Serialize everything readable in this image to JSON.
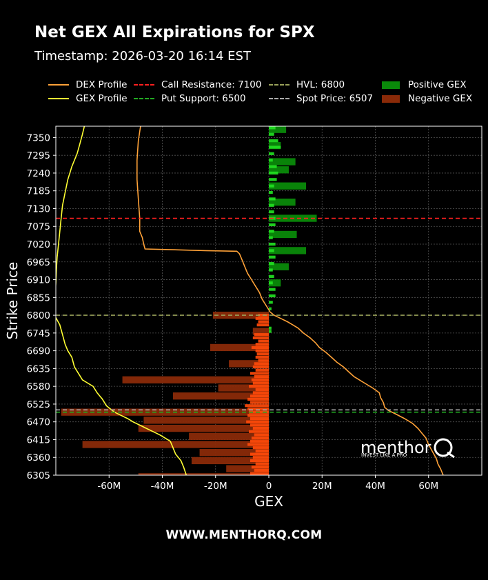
{
  "header": {
    "title": "Net GEX All Expirations for SPX",
    "subtitle": "Timestamp: 2026-03-20 16:14 EST"
  },
  "legend": [
    {
      "label": "DEX Profile",
      "kind": "line",
      "color": "#ffa238",
      "dash": "solid"
    },
    {
      "label": "GEX Profile",
      "kind": "line",
      "color": "#ffff33",
      "dash": "solid"
    },
    {
      "label": "Call Resistance: 7100",
      "kind": "line",
      "color": "#ff2020",
      "dash": "dashed"
    },
    {
      "label": "Put Support: 6500",
      "kind": "line",
      "color": "#22aa22",
      "dash": "dashed"
    },
    {
      "label": "HVL: 6800",
      "kind": "line",
      "color": "#9aa25a",
      "dash": "dashed"
    },
    {
      "label": "Spot Price: 6507",
      "kind": "line",
      "color": "#aaaaaa",
      "dash": "dashed"
    },
    {
      "label": "Positive GEX",
      "kind": "box",
      "color": "#0a8a0a"
    },
    {
      "label": "Negative GEX",
      "kind": "box",
      "color": "#8a2a08"
    }
  ],
  "footer": "WWW.MENTHORQ.COM",
  "watermark": {
    "brand": "menthor",
    "letter": "Q",
    "tagline": "INVEST LIKE A PRO"
  },
  "chart_data": {
    "type": "bar",
    "orientation": "horizontal",
    "xlabel": "GEX",
    "ylabel": "Strike Price",
    "xlim": [
      -80000000,
      80000000
    ],
    "ylim": [
      6305,
      7385
    ],
    "xticks": [
      -60000000,
      -40000000,
      -20000000,
      0,
      20000000,
      40000000,
      60000000
    ],
    "xtick_labels": [
      "-60M",
      "-40M",
      "-20M",
      "0",
      "20M",
      "40M",
      "60M"
    ],
    "yticks": [
      6305,
      6360,
      6415,
      6470,
      6525,
      6580,
      6635,
      6690,
      6745,
      6800,
      6855,
      6910,
      6965,
      7020,
      7075,
      7130,
      7185,
      7240,
      7295,
      7350
    ],
    "grid": true,
    "levels": [
      {
        "name": "Call Resistance",
        "value": 7100,
        "color": "#ff2020"
      },
      {
        "name": "HVL",
        "value": 6800,
        "color": "#9aa25a"
      },
      {
        "name": "Spot Price",
        "value": 6507,
        "color": "#aaaaaa"
      },
      {
        "name": "Put Support",
        "value": 6500,
        "color": "#22aa22"
      }
    ],
    "gex_bars_wide": [
      {
        "strike": 7375,
        "value": 6500000
      },
      {
        "strike": 7325,
        "value": 4500000
      },
      {
        "strike": 7275,
        "value": 10000000
      },
      {
        "strike": 7250,
        "value": 7500000
      },
      {
        "strike": 7200,
        "value": 14000000
      },
      {
        "strike": 7150,
        "value": 10000000
      },
      {
        "strike": 7100,
        "value": 18000000
      },
      {
        "strike": 7050,
        "value": 10500000
      },
      {
        "strike": 7000,
        "value": 14000000
      },
      {
        "strike": 6950,
        "value": 7500000
      },
      {
        "strike": 6900,
        "value": 4500000
      },
      {
        "strike": 6800,
        "value": -21000000
      },
      {
        "strike": 6750,
        "value": -6000000
      },
      {
        "strike": 6700,
        "value": -22000000
      },
      {
        "strike": 6650,
        "value": -15000000
      },
      {
        "strike": 6600,
        "value": -55000000
      },
      {
        "strike": 6575,
        "value": -19000000
      },
      {
        "strike": 6550,
        "value": -36000000
      },
      {
        "strike": 6500,
        "value": -78000000
      },
      {
        "strike": 6475,
        "value": -47000000
      },
      {
        "strike": 6450,
        "value": -49000000
      },
      {
        "strike": 6425,
        "value": -30000000
      },
      {
        "strike": 6400,
        "value": -70000000
      },
      {
        "strike": 6375,
        "value": -26000000
      },
      {
        "strike": 6350,
        "value": -29000000
      },
      {
        "strike": 6325,
        "value": -16000000
      },
      {
        "strike": 6300,
        "value": -49000000
      }
    ],
    "gex_bars_narrow": [
      {
        "strike": 7380,
        "value": 2500000
      },
      {
        "strike": 7360,
        "value": 2000000
      },
      {
        "strike": 7340,
        "value": 3500000
      },
      {
        "strike": 7320,
        "value": 4500000
      },
      {
        "strike": 7300,
        "value": 2000000
      },
      {
        "strike": 7280,
        "value": 1500000
      },
      {
        "strike": 7260,
        "value": 3000000
      },
      {
        "strike": 7240,
        "value": 3500000
      },
      {
        "strike": 7220,
        "value": 3000000
      },
      {
        "strike": 7200,
        "value": 2000000
      },
      {
        "strike": 7180,
        "value": 1500000
      },
      {
        "strike": 7160,
        "value": 2500000
      },
      {
        "strike": 7140,
        "value": 2000000
      },
      {
        "strike": 7120,
        "value": 2000000
      },
      {
        "strike": 7100,
        "value": 2500000
      },
      {
        "strike": 7080,
        "value": 2500000
      },
      {
        "strike": 7060,
        "value": 2000000
      },
      {
        "strike": 7040,
        "value": 1500000
      },
      {
        "strike": 7020,
        "value": 2500000
      },
      {
        "strike": 7000,
        "value": 2000000
      },
      {
        "strike": 6980,
        "value": 2500000
      },
      {
        "strike": 6960,
        "value": 2000000
      },
      {
        "strike": 6940,
        "value": 1500000
      },
      {
        "strike": 6920,
        "value": 2000000
      },
      {
        "strike": 6900,
        "value": 1500000
      },
      {
        "strike": 6880,
        "value": 2500000
      },
      {
        "strike": 6860,
        "value": 2500000
      },
      {
        "strike": 6840,
        "value": 1500000
      },
      {
        "strike": 6820,
        "value": 1000000
      },
      {
        "strike": 6800,
        "value": -4000000
      },
      {
        "strike": 6790,
        "value": -5000000
      },
      {
        "strike": 6780,
        "value": -4000000
      },
      {
        "strike": 6770,
        "value": -4500000
      },
      {
        "strike": 6760,
        "value": 1000000
      },
      {
        "strike": 6750,
        "value": 1000000
      },
      {
        "strike": 6740,
        "value": -5500000
      },
      {
        "strike": 6730,
        "value": -6000000
      },
      {
        "strike": 6720,
        "value": -4000000
      },
      {
        "strike": 6710,
        "value": -5000000
      },
      {
        "strike": 6700,
        "value": -6500000
      },
      {
        "strike": 6690,
        "value": -5000000
      },
      {
        "strike": 6680,
        "value": -4500000
      },
      {
        "strike": 6670,
        "value": -5000000
      },
      {
        "strike": 6660,
        "value": -4000000
      },
      {
        "strike": 6650,
        "value": -5500000
      },
      {
        "strike": 6640,
        "value": -6000000
      },
      {
        "strike": 6630,
        "value": -5000000
      },
      {
        "strike": 6620,
        "value": -7000000
      },
      {
        "strike": 6610,
        "value": -5500000
      },
      {
        "strike": 6600,
        "value": -6500000
      },
      {
        "strike": 6590,
        "value": -6000000
      },
      {
        "strike": 6580,
        "value": -7500000
      },
      {
        "strike": 6570,
        "value": -5000000
      },
      {
        "strike": 6560,
        "value": -6000000
      },
      {
        "strike": 6550,
        "value": -7000000
      },
      {
        "strike": 6540,
        "value": -8000000
      },
      {
        "strike": 6530,
        "value": -7000000
      },
      {
        "strike": 6520,
        "value": -9000000
      },
      {
        "strike": 6510,
        "value": -8000000
      },
      {
        "strike": 6500,
        "value": -7500000
      },
      {
        "strike": 6490,
        "value": -8000000
      },
      {
        "strike": 6480,
        "value": -7000000
      },
      {
        "strike": 6470,
        "value": -8500000
      },
      {
        "strike": 6460,
        "value": -7000000
      },
      {
        "strike": 6450,
        "value": -6000000
      },
      {
        "strike": 6440,
        "value": -7500000
      },
      {
        "strike": 6430,
        "value": -5500000
      },
      {
        "strike": 6420,
        "value": -6500000
      },
      {
        "strike": 6410,
        "value": -7000000
      },
      {
        "strike": 6400,
        "value": -8000000
      },
      {
        "strike": 6390,
        "value": -6000000
      },
      {
        "strike": 6380,
        "value": -5000000
      },
      {
        "strike": 6370,
        "value": -7000000
      },
      {
        "strike": 6360,
        "value": -6000000
      },
      {
        "strike": 6350,
        "value": -7000000
      },
      {
        "strike": 6340,
        "value": -5000000
      },
      {
        "strike": 6330,
        "value": -6500000
      },
      {
        "strike": 6320,
        "value": -5500000
      },
      {
        "strike": 6310,
        "value": -7000000
      }
    ],
    "gex_profile": [
      [
        7395,
        -69000000
      ],
      [
        7360,
        -70000000
      ],
      [
        7330,
        -71000000
      ],
      [
        7300,
        -72000000
      ],
      [
        7260,
        -74000000
      ],
      [
        7220,
        -75500000
      ],
      [
        7180,
        -76500000
      ],
      [
        7140,
        -77500000
      ],
      [
        7100,
        -78000000
      ],
      [
        7060,
        -78500000
      ],
      [
        7020,
        -79000000
      ],
      [
        6980,
        -79500000
      ],
      [
        6940,
        -79800000
      ],
      [
        6900,
        -80000000
      ],
      [
        6860,
        -80300000
      ],
      [
        6830,
        -80500000
      ],
      [
        6800,
        -80500000
      ],
      [
        6770,
        -78500000
      ],
      [
        6740,
        -77500000
      ],
      [
        6710,
        -76500000
      ],
      [
        6690,
        -75500000
      ],
      [
        6670,
        -74000000
      ],
      [
        6640,
        -73000000
      ],
      [
        6620,
        -71500000
      ],
      [
        6600,
        -70000000
      ],
      [
        6590,
        -68000000
      ],
      [
        6580,
        -66000000
      ],
      [
        6560,
        -64500000
      ],
      [
        6540,
        -62500000
      ],
      [
        6520,
        -61000000
      ],
      [
        6510,
        -59500000
      ],
      [
        6500,
        -58000000
      ],
      [
        6490,
        -55500000
      ],
      [
        6480,
        -53000000
      ],
      [
        6470,
        -51000000
      ],
      [
        6460,
        -48500000
      ],
      [
        6450,
        -46000000
      ],
      [
        6440,
        -43500000
      ],
      [
        6430,
        -41000000
      ],
      [
        6420,
        -39000000
      ],
      [
        6410,
        -37000000
      ],
      [
        6390,
        -36000000
      ],
      [
        6370,
        -35000000
      ],
      [
        6350,
        -33000000
      ],
      [
        6330,
        -32000000
      ],
      [
        6305,
        -31000000
      ]
    ],
    "dex_profile": [
      [
        7395,
        -48000000
      ],
      [
        7340,
        -49000000
      ],
      [
        7280,
        -49500000
      ],
      [
        7220,
        -49500000
      ],
      [
        7160,
        -49000000
      ],
      [
        7100,
        -48500000
      ],
      [
        7060,
        -48500000
      ],
      [
        7040,
        -47500000
      ],
      [
        7020,
        -47000000
      ],
      [
        7005,
        -46500000
      ],
      [
        7000,
        -24000000
      ],
      [
        6998,
        -12000000
      ],
      [
        6990,
        -11000000
      ],
      [
        6970,
        -10000000
      ],
      [
        6950,
        -9000000
      ],
      [
        6930,
        -8000000
      ],
      [
        6910,
        -6500000
      ],
      [
        6890,
        -5000000
      ],
      [
        6870,
        -3500000
      ],
      [
        6850,
        -2500000
      ],
      [
        6830,
        -1000000
      ],
      [
        6810,
        500000
      ],
      [
        6800,
        2000000
      ],
      [
        6790,
        4500000
      ],
      [
        6780,
        7000000
      ],
      [
        6770,
        9000000
      ],
      [
        6760,
        11000000
      ],
      [
        6745,
        13000000
      ],
      [
        6730,
        15500000
      ],
      [
        6715,
        17500000
      ],
      [
        6700,
        19000000
      ],
      [
        6685,
        21500000
      ],
      [
        6670,
        23500000
      ],
      [
        6655,
        25500000
      ],
      [
        6640,
        28000000
      ],
      [
        6625,
        30000000
      ],
      [
        6610,
        32000000
      ],
      [
        6600,
        34000000
      ],
      [
        6590,
        36000000
      ],
      [
        6575,
        39000000
      ],
      [
        6560,
        41500000
      ],
      [
        6545,
        42000000
      ],
      [
        6530,
        43000000
      ],
      [
        6515,
        43500000
      ],
      [
        6505,
        45000000
      ],
      [
        6495,
        47500000
      ],
      [
        6480,
        51000000
      ],
      [
        6465,
        54000000
      ],
      [
        6450,
        56000000
      ],
      [
        6435,
        57500000
      ],
      [
        6420,
        59000000
      ],
      [
        6400,
        60000000
      ],
      [
        6385,
        61000000
      ],
      [
        6370,
        62000000
      ],
      [
        6355,
        63000000
      ],
      [
        6340,
        63500000
      ],
      [
        6325,
        64500000
      ],
      [
        6305,
        65500000
      ]
    ]
  }
}
